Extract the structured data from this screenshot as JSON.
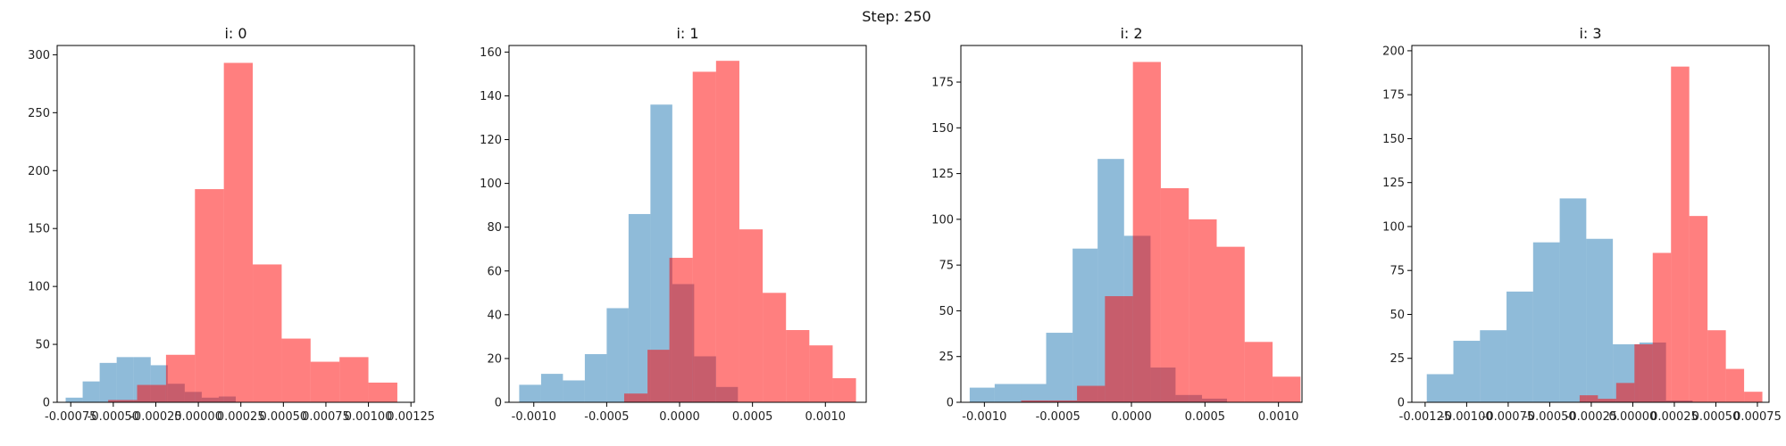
{
  "figure": {
    "suptitle": "Step: 250"
  },
  "colors": {
    "blue": "#1f77b4",
    "red": "#ff0000",
    "axis": "#000000"
  },
  "chart_data": [
    {
      "type": "bar",
      "title": "i: 0",
      "xlim": [
        -0.00083,
        0.00127
      ],
      "ylim": [
        0,
        308
      ],
      "xticks": [
        -0.00075,
        -0.0005,
        -0.00025,
        0,
        0.00025,
        0.0005,
        0.00075,
        0.001,
        0.00125
      ],
      "xtick_labels": [
        "-0.00075",
        "-0.00050",
        "-0.00025",
        "0.00000",
        "0.00025",
        "0.00050",
        "0.00075",
        "0.00100",
        "0.00125"
      ],
      "yticks": [
        0,
        50,
        100,
        150,
        200,
        250,
        300
      ],
      "ytick_labels": [
        "0",
        "50",
        "100",
        "150",
        "200",
        "250",
        "300"
      ],
      "series": [
        {
          "color": "blue",
          "alpha": 0.5,
          "bin_edges": [
            -0.00078,
            -0.00068,
            -0.00058,
            -0.00048,
            -0.00038,
            -0.00028,
            -0.00018,
            -8e-05,
            2e-05,
            0.00012,
            0.00022
          ],
          "counts": [
            4,
            18,
            34,
            39,
            39,
            32,
            16,
            9,
            4,
            5
          ]
        },
        {
          "color": "red",
          "alpha": 0.5,
          "bin_edges": [
            -0.00053,
            -0.00036,
            -0.00019,
            -2e-05,
            0.00015,
            0.00032,
            0.00049,
            0.00066,
            0.00083,
            0.001,
            0.00117
          ],
          "counts": [
            2,
            15,
            41,
            184,
            293,
            119,
            55,
            35,
            39,
            17
          ]
        }
      ]
    },
    {
      "type": "bar",
      "title": "i: 1",
      "xlim": [
        -0.00117,
        0.00128
      ],
      "ylim": [
        0,
        163
      ],
      "xticks": [
        -0.001,
        -0.0005,
        0,
        0.0005,
        0.001
      ],
      "xtick_labels": [
        "-0.0010",
        "-0.0005",
        "0.0000",
        "0.0005",
        "0.0010"
      ],
      "yticks": [
        0,
        20,
        40,
        60,
        80,
        100,
        120,
        140,
        160
      ],
      "ytick_labels": [
        "0",
        "20",
        "40",
        "60",
        "80",
        "100",
        "120",
        "140",
        "160"
      ],
      "series": [
        {
          "color": "blue",
          "alpha": 0.5,
          "bin_edges": [
            -0.0011,
            -0.00095,
            -0.0008,
            -0.00065,
            -0.0005,
            -0.00035,
            -0.0002,
            -5e-05,
            0.0001,
            0.00025,
            0.0004
          ],
          "counts": [
            8,
            13,
            10,
            22,
            43,
            86,
            136,
            54,
            21,
            7
          ]
        },
        {
          "color": "red",
          "alpha": 0.5,
          "bin_edges": [
            -0.00038,
            -0.00022,
            -7e-05,
            9e-05,
            0.00025,
            0.00041,
            0.00057,
            0.00073,
            0.00089,
            0.00105,
            0.00121
          ],
          "counts": [
            4,
            24,
            66,
            151,
            156,
            79,
            50,
            33,
            26,
            11
          ]
        }
      ]
    },
    {
      "type": "bar",
      "title": "i: 2",
      "xlim": [
        -0.00116,
        0.00116
      ],
      "ylim": [
        0,
        195
      ],
      "xticks": [
        -0.001,
        -0.0005,
        0,
        0.0005,
        0.001
      ],
      "xtick_labels": [
        "-0.0010",
        "-0.0005",
        "0.0000",
        "0.0005",
        "0.0010"
      ],
      "yticks": [
        0,
        25,
        50,
        75,
        100,
        125,
        150,
        175
      ],
      "ytick_labels": [
        "0",
        "25",
        "50",
        "75",
        "100",
        "125",
        "150",
        "175"
      ],
      "series": [
        {
          "color": "blue",
          "alpha": 0.5,
          "bin_edges": [
            -0.0011,
            -0.00093,
            -0.00075,
            -0.00058,
            -0.0004,
            -0.00023,
            -5e-05,
            0.00013,
            0.0003,
            0.00048,
            0.00065
          ],
          "counts": [
            8,
            10,
            10,
            38,
            84,
            133,
            91,
            19,
            4,
            2
          ]
        },
        {
          "color": "red",
          "alpha": 0.5,
          "bin_edges": [
            -0.00075,
            -0.00056,
            -0.00037,
            -0.00018,
            1e-05,
            0.0002,
            0.00039,
            0.00058,
            0.00077,
            0.00096,
            0.00115
          ],
          "counts": [
            1,
            1,
            9,
            58,
            186,
            117,
            100,
            85,
            33,
            14
          ]
        }
      ]
    },
    {
      "type": "bar",
      "title": "i: 3",
      "xlim": [
        -0.00133,
        0.00082
      ],
      "ylim": [
        0,
        203
      ],
      "xticks": [
        -0.00125,
        -0.001,
        -0.00075,
        -0.0005,
        -0.00025,
        0,
        0.00025,
        0.0005,
        0.00075
      ],
      "xtick_labels": [
        "-0.00125",
        "-0.00100",
        "-0.00075",
        "-0.00050",
        "-0.00025",
        "0.00000",
        "0.00025",
        "0.00050",
        "0.00075"
      ],
      "yticks": [
        0,
        25,
        50,
        75,
        100,
        125,
        150,
        175,
        200
      ],
      "ytick_labels": [
        "0",
        "25",
        "50",
        "75",
        "100",
        "125",
        "150",
        "175",
        "200"
      ],
      "series": [
        {
          "color": "blue",
          "alpha": 0.5,
          "bin_edges": [
            -0.00124,
            -0.00108,
            -0.00092,
            -0.00076,
            -0.0006,
            -0.00044,
            -0.00028,
            -0.00012,
            4e-05,
            0.0002,
            0.00036
          ],
          "counts": [
            16,
            35,
            41,
            63,
            91,
            116,
            93,
            33,
            34,
            1
          ]
        },
        {
          "color": "red",
          "alpha": 0.5,
          "bin_edges": [
            -0.00032,
            -0.00021,
            -0.0001,
            1e-05,
            0.00012,
            0.00023,
            0.00034,
            0.00045,
            0.00056,
            0.00067,
            0.00078
          ],
          "counts": [
            4,
            2,
            11,
            33,
            85,
            191,
            106,
            41,
            19,
            6
          ]
        }
      ]
    }
  ]
}
